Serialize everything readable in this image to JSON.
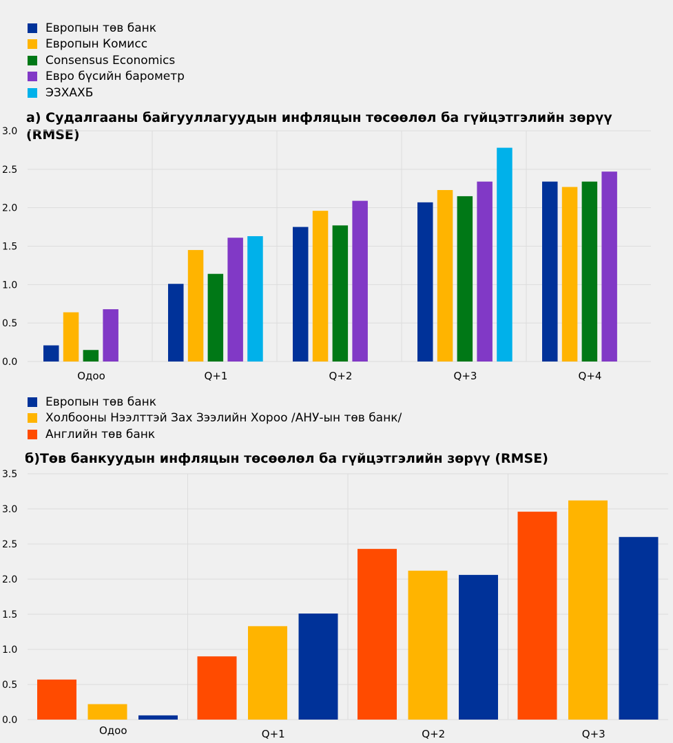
{
  "colors": {
    "blue": "#003299",
    "yellow": "#ffb400",
    "green": "#007816",
    "purple": "#8139c6",
    "cyan": "#00b1ea",
    "orange": "#ff4b00",
    "background": "#f0f0f0",
    "grid": "#dcdcdc"
  },
  "legend_a": [
    {
      "label": "Европын төв банк",
      "color": "#003299"
    },
    {
      "label": "Европын Комисс",
      "color": "#ffb400"
    },
    {
      "label": "Consensus Economics",
      "color": "#007816"
    },
    {
      "label": "Евро бүсийн барометр",
      "color": "#8139c6"
    },
    {
      "label": "ЭЗХАХБ",
      "color": "#00b1ea"
    }
  ],
  "legend_b": [
    {
      "label": "Европын төв банк",
      "color": "#003299"
    },
    {
      "label": "Холбооны Нээлттэй Зах Зээлийн Хороо /АНУ-ын төв банк/",
      "color": "#ffb400"
    },
    {
      "label": "Английн төв банк",
      "color": "#ff4b00"
    }
  ],
  "chart_data": [
    {
      "type": "bar",
      "title": "a) Судалгааны байгууллагуудын инфляцын төсөөлөл ба гүйцэтгэлийн зөрүү (RMSE)",
      "categories": [
        "Одоо",
        "Q+1",
        "Q+2",
        "Q+3",
        "Q+4"
      ],
      "ylim": [
        0,
        3.0
      ],
      "yticks": [
        "0.0",
        "0.5",
        "1.0",
        "1.5",
        "2.0",
        "2.5",
        "3.0"
      ],
      "grid": true,
      "legend_position": "top-left",
      "series": [
        {
          "name": "Европын төв банк",
          "color": "#003299",
          "values": [
            0.21,
            1.01,
            1.75,
            2.07,
            2.34
          ]
        },
        {
          "name": "Европын Комисс",
          "color": "#ffb400",
          "values": [
            0.64,
            1.45,
            1.96,
            2.23,
            2.27
          ]
        },
        {
          "name": "Consensus Economics",
          "color": "#007816",
          "values": [
            0.15,
            1.14,
            1.77,
            2.15,
            2.34
          ]
        },
        {
          "name": "Евро бүсийн барометр",
          "color": "#8139c6",
          "values": [
            0.68,
            1.61,
            2.09,
            2.34,
            2.47
          ]
        },
        {
          "name": "ЭЗХАХБ",
          "color": "#00b1ea",
          "values": [
            null,
            1.63,
            null,
            2.78,
            null
          ]
        }
      ]
    },
    {
      "type": "bar",
      "title": "б)Төв банкуудын инфляцын төсөөлөл ба гүйцэтгэлийн зөрүү (RMSE)",
      "categories": [
        "Одоо",
        "Q+1",
        "Q+2",
        "Q+3"
      ],
      "ylim": [
        0,
        3.5
      ],
      "yticks": [
        "0.0",
        "0.5",
        "1.0",
        "1.5",
        "2.0",
        "2.5",
        "3.0",
        "3.5"
      ],
      "grid": true,
      "legend_position": "top-left",
      "series": [
        {
          "name": "Английн төв банк",
          "color": "#ff4b00",
          "values": [
            0.57,
            0.9,
            2.43,
            2.96
          ]
        },
        {
          "name": "Холбооны Нээлттэй Зах Зээлийн Хороо /АНУ-ын төв банк/",
          "color": "#ffb400",
          "values": [
            0.22,
            1.33,
            2.12,
            3.12
          ]
        },
        {
          "name": "Европын төв банк",
          "color": "#003299",
          "values": [
            0.06,
            1.51,
            2.06,
            2.6
          ]
        }
      ]
    }
  ]
}
